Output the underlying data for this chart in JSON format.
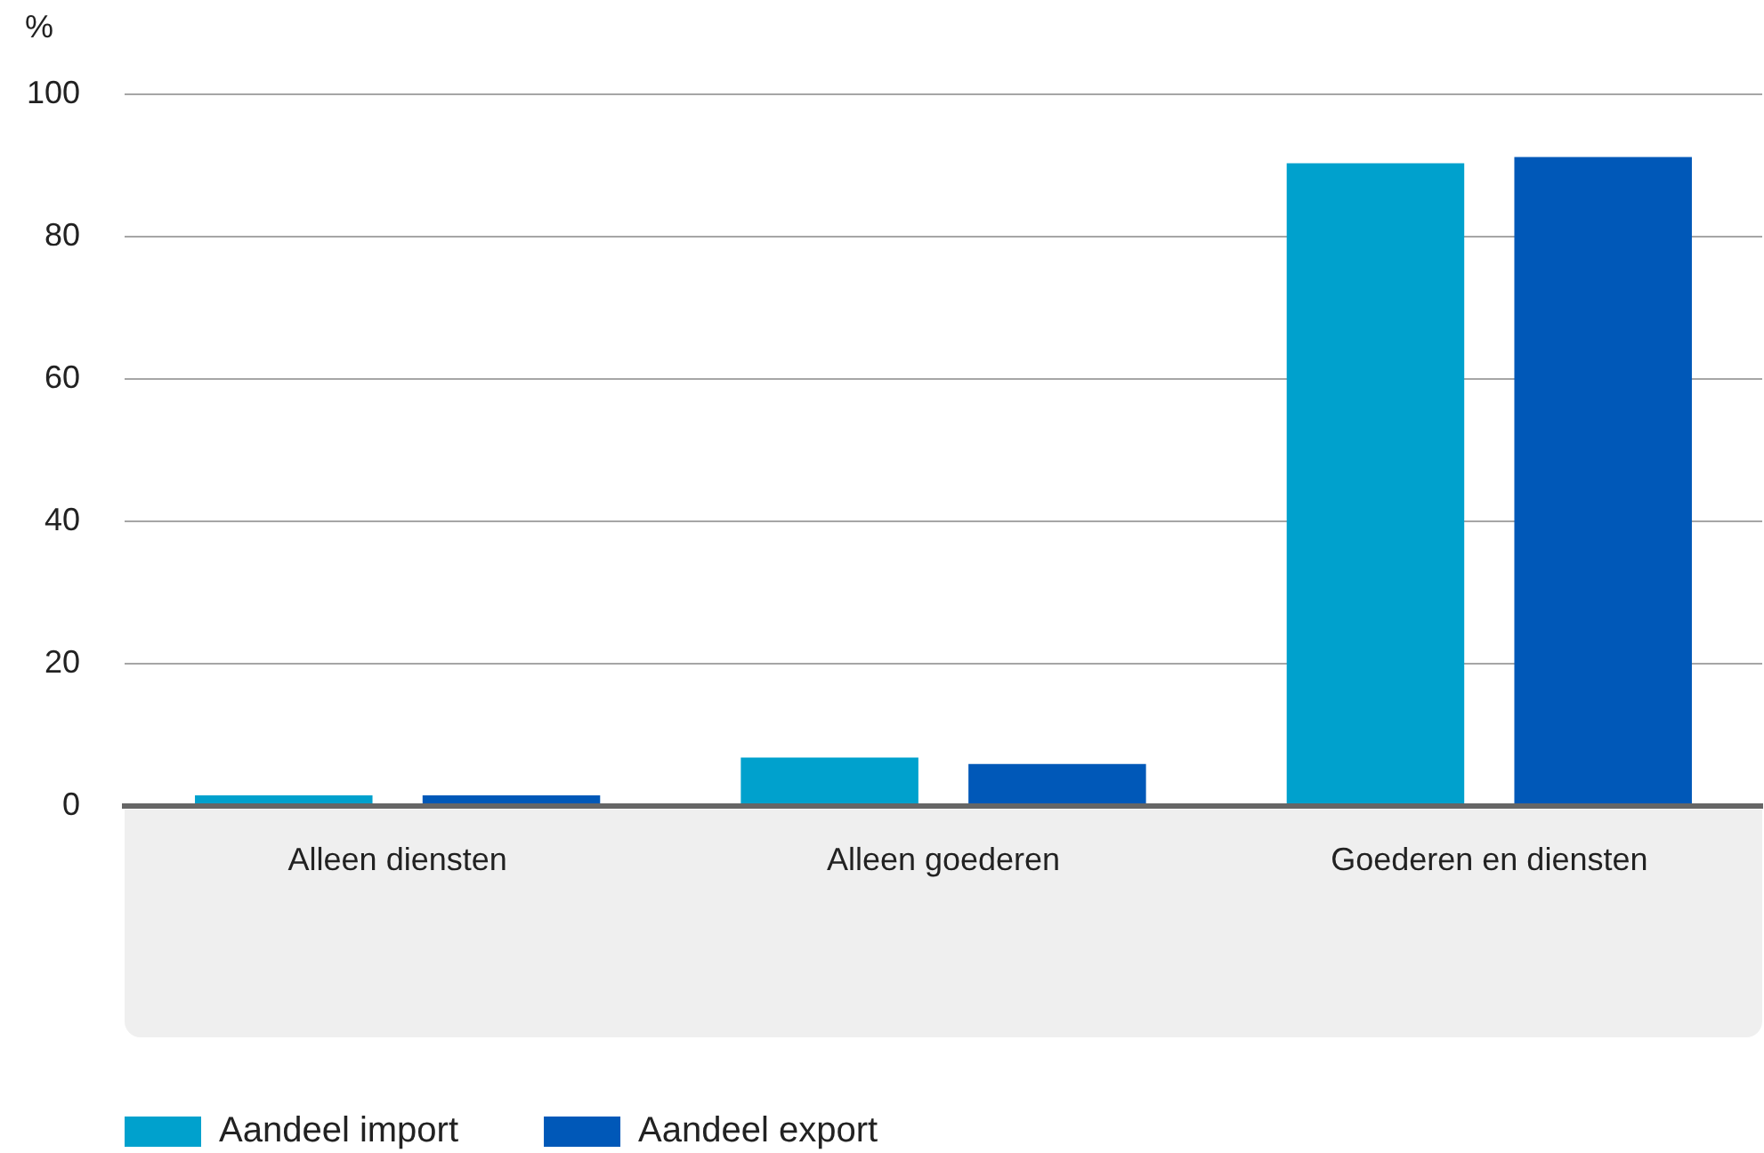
{
  "chart_data": {
    "type": "bar",
    "ylabel": "%",
    "categories": [
      "Alleen diensten",
      "Alleen goederen",
      "Goederen en diensten"
    ],
    "series": [
      {
        "name": "Aandeel import",
        "color": "#00a1cd",
        "values": [
          1.5,
          6.8,
          90.3
        ]
      },
      {
        "name": "Aandeel export",
        "color": "#0058b8",
        "values": [
          1.5,
          5.9,
          91.2
        ]
      }
    ],
    "ylim": [
      0,
      100
    ],
    "yticks": [
      0,
      20,
      40,
      60,
      80,
      100
    ],
    "grid": "y",
    "legend": "bottom left"
  }
}
